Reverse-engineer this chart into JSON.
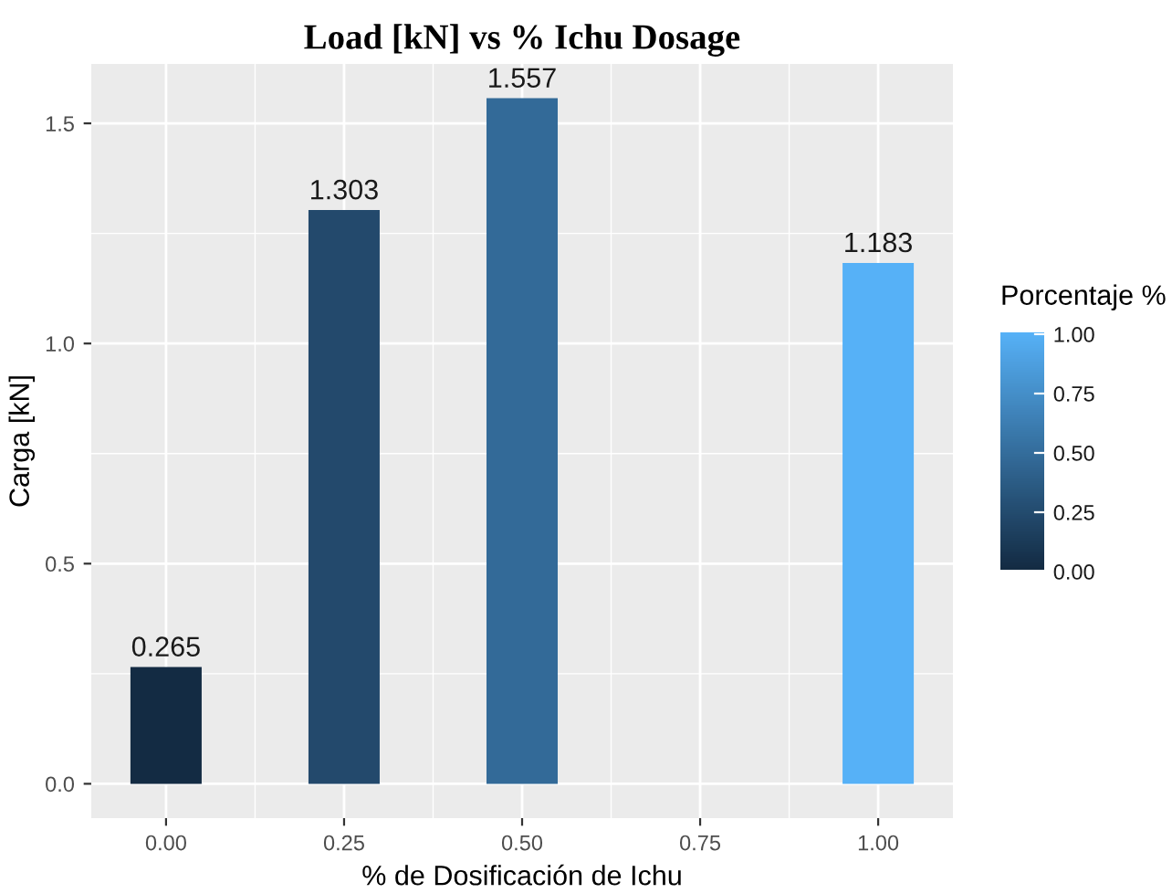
{
  "chart_data": {
    "type": "bar",
    "title": "Load [kN] vs % Ichu Dosage",
    "xlabel": "% de Dosificación de Ichu",
    "ylabel": "Carga [kN]",
    "clabel": "Porcentaje %",
    "x": [
      0,
      0.25,
      0.5,
      1.0
    ],
    "values": [
      0.265,
      1.303,
      1.557,
      1.183
    ],
    "colors": [
      "#132b43",
      "#23496c",
      "#336a98",
      "#56b1f7"
    ],
    "xlim": [
      -0.105,
      1.105
    ],
    "xticks": [
      {
        "value": 0,
        "label": "0.00"
      },
      {
        "value": 0.25,
        "label": "0.25"
      },
      {
        "value": 0.5,
        "label": "0.50"
      },
      {
        "value": 0.75,
        "label": "0.75"
      },
      {
        "value": 1.0,
        "label": "1.00"
      }
    ],
    "ylim": [
      -0.078,
      1.635
    ],
    "yticks": [
      {
        "value": 0,
        "label": "0.0"
      },
      {
        "value": 0.5,
        "label": "0.5"
      },
      {
        "value": 1.0,
        "label": "1.0"
      },
      {
        "value": 1.5,
        "label": "1.5"
      }
    ],
    "clim": [
      0,
      1
    ],
    "cticks": [
      {
        "value": 0,
        "label": "0.00"
      },
      {
        "value": 0.25,
        "label": "0.25"
      },
      {
        "value": 0.5,
        "label": "0.50"
      },
      {
        "value": 0.75,
        "label": "0.75"
      },
      {
        "value": 1.0,
        "label": "1.00"
      }
    ],
    "data_labels": true,
    "grid": true
  }
}
